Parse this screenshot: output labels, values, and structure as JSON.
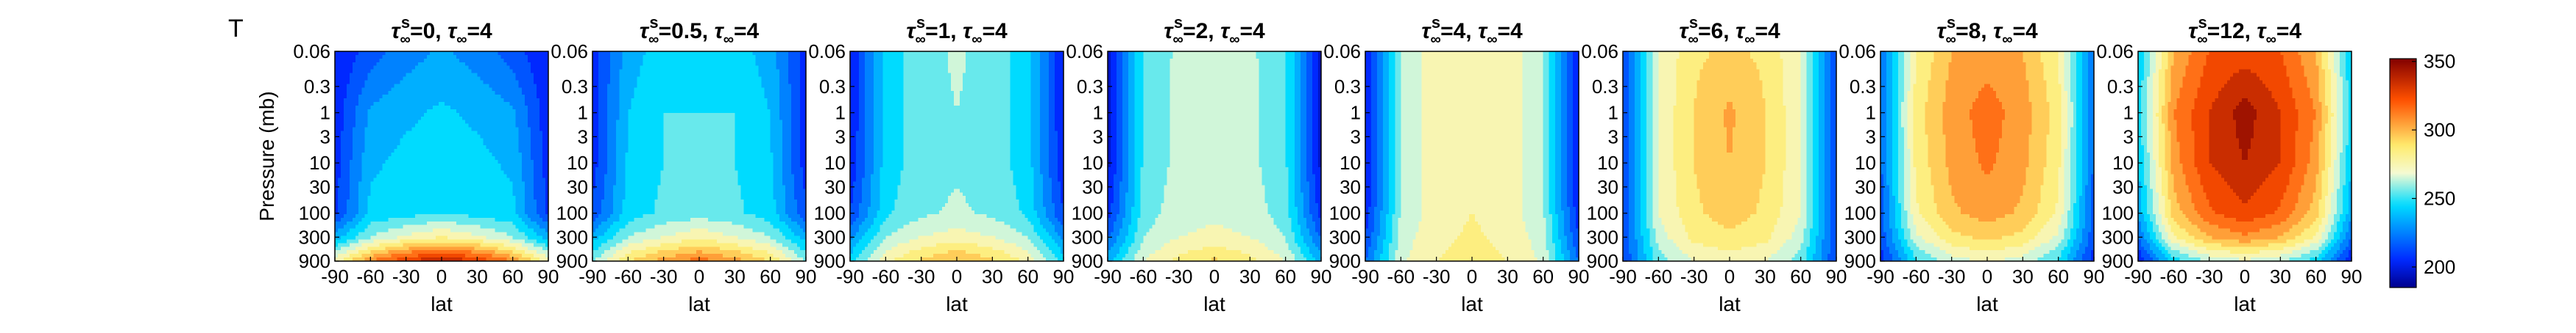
{
  "figure": {
    "panel_letter": "T",
    "colorbar": {
      "ticks": [
        "200",
        "250",
        "300",
        "350"
      ],
      "tick_values": [
        200,
        250,
        300,
        350
      ],
      "range": [
        185,
        352
      ]
    }
  },
  "chart_data": {
    "type": "heatmap",
    "shared": {
      "xlabel": "lat",
      "ylabel": "Pressure (mb)",
      "x_ticks": [
        "-90",
        "-60",
        "-30",
        "0",
        "30",
        "60",
        "90"
      ],
      "x_tick_values": [
        -90,
        -60,
        -30,
        0,
        30,
        60,
        90
      ],
      "y_ticks": [
        "0.06",
        "0.3",
        "1",
        "3",
        "10",
        "30",
        "100",
        "300",
        "900"
      ],
      "y_tick_values": [
        0.06,
        0.3,
        1,
        3,
        10,
        30,
        100,
        300,
        900
      ],
      "y_scale": "log",
      "ylim": [
        900,
        0.06
      ],
      "xlim": [
        -90,
        90
      ],
      "colormap": "jet-like (blue-cyan-yellow-red)",
      "contour_levels": [
        200,
        210,
        220,
        230,
        240,
        250,
        260,
        270,
        280,
        290,
        300,
        310,
        320,
        330,
        340,
        350
      ],
      "lat_samples": [
        -90,
        -60,
        -30,
        0,
        30,
        60,
        90
      ],
      "pressure_samples": [
        0.06,
        1,
        10,
        100,
        300,
        900
      ]
    },
    "panels": [
      {
        "title_sup": "s",
        "title_a": "=0",
        "title_b": "=4",
        "T_grid": [
          [
            200,
            215,
            225,
            232,
            225,
            215,
            200
          ],
          [
            203,
            232,
            238,
            242,
            238,
            232,
            203
          ],
          [
            205,
            238,
            243,
            243,
            243,
            238,
            205
          ],
          [
            208,
            243,
            246,
            250,
            246,
            243,
            208
          ],
          [
            235,
            260,
            272,
            280,
            272,
            260,
            235
          ],
          [
            275,
            310,
            330,
            340,
            330,
            310,
            275
          ]
        ]
      },
      {
        "title_sup": "s",
        "title_a": "=0.5",
        "title_b": "=4",
        "T_grid": [
          [
            205,
            235,
            245,
            245,
            245,
            235,
            205
          ],
          [
            205,
            240,
            250,
            250,
            250,
            240,
            205
          ],
          [
            205,
            242,
            250,
            250,
            250,
            242,
            205
          ],
          [
            212,
            245,
            252,
            255,
            252,
            245,
            212
          ],
          [
            235,
            260,
            270,
            278,
            270,
            260,
            235
          ],
          [
            258,
            290,
            305,
            315,
            305,
            290,
            258
          ]
        ]
      },
      {
        "title_sup": "s",
        "title_a": "=1",
        "title_b": "=4",
        "T_grid": [
          [
            200,
            245,
            255,
            262,
            255,
            245,
            200
          ],
          [
            200,
            245,
            255,
            260,
            255,
            245,
            200
          ],
          [
            202,
            245,
            255,
            258,
            255,
            245,
            202
          ],
          [
            210,
            248,
            258,
            262,
            258,
            248,
            210
          ],
          [
            228,
            260,
            270,
            275,
            270,
            260,
            228
          ],
          [
            245,
            278,
            292,
            302,
            292,
            278,
            245
          ]
        ]
      },
      {
        "title_sup": "s",
        "title_a": "=2",
        "title_b": "=4",
        "T_grid": [
          [
            195,
            252,
            262,
            265,
            262,
            252,
            195
          ],
          [
            195,
            252,
            263,
            265,
            263,
            252,
            195
          ],
          [
            197,
            252,
            263,
            265,
            263,
            252,
            197
          ],
          [
            205,
            255,
            265,
            268,
            265,
            255,
            205
          ],
          [
            218,
            260,
            270,
            273,
            270,
            260,
            218
          ],
          [
            235,
            270,
            283,
            292,
            283,
            270,
            235
          ]
        ]
      },
      {
        "title_sup": "s",
        "title_a": "=4",
        "title_b": "=4",
        "T_grid": [
          [
            200,
            262,
            275,
            280,
            275,
            262,
            200
          ],
          [
            200,
            262,
            275,
            280,
            275,
            262,
            200
          ],
          [
            200,
            262,
            275,
            280,
            275,
            262,
            200
          ],
          [
            203,
            262,
            275,
            280,
            275,
            262,
            203
          ],
          [
            210,
            265,
            277,
            282,
            277,
            265,
            210
          ],
          [
            220,
            268,
            280,
            285,
            280,
            268,
            220
          ]
        ]
      },
      {
        "title_sup": "s",
        "title_a": "=6",
        "title_b": "=4",
        "T_grid": [
          [
            210,
            270,
            288,
            292,
            288,
            270,
            210
          ],
          [
            210,
            272,
            290,
            302,
            290,
            272,
            210
          ],
          [
            210,
            272,
            290,
            300,
            290,
            272,
            210
          ],
          [
            210,
            270,
            288,
            295,
            288,
            270,
            210
          ],
          [
            210,
            265,
            283,
            288,
            283,
            265,
            210
          ],
          [
            210,
            255,
            270,
            275,
            270,
            255,
            210
          ]
        ]
      },
      {
        "title_sup": "s",
        "title_a": "=8",
        "title_b": "=4",
        "T_grid": [
          [
            220,
            280,
            300,
            305,
            300,
            280,
            220
          ],
          [
            220,
            285,
            305,
            315,
            305,
            285,
            220
          ],
          [
            218,
            283,
            303,
            312,
            303,
            283,
            218
          ],
          [
            215,
            278,
            298,
            305,
            298,
            278,
            215
          ],
          [
            212,
            268,
            287,
            293,
            287,
            268,
            212
          ],
          [
            205,
            248,
            265,
            272,
            265,
            248,
            205
          ]
        ]
      },
      {
        "title_sup": "s",
        "title_a": "=12",
        "title_b": "=4",
        "T_grid": [
          [
            240,
            300,
            320,
            325,
            320,
            300,
            240
          ],
          [
            245,
            310,
            330,
            345,
            330,
            310,
            245
          ],
          [
            240,
            305,
            330,
            340,
            330,
            305,
            240
          ],
          [
            232,
            295,
            318,
            328,
            318,
            295,
            232
          ],
          [
            220,
            278,
            300,
            308,
            300,
            278,
            220
          ],
          [
            200,
            245,
            262,
            268,
            262,
            245,
            200
          ]
        ]
      }
    ]
  }
}
